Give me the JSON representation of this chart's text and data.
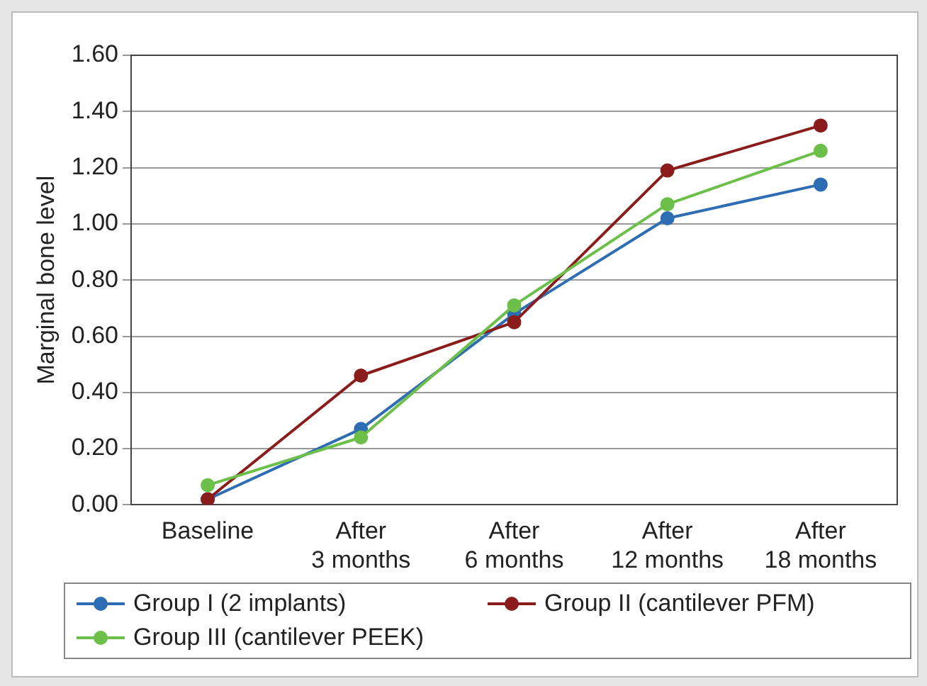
{
  "chart_data": {
    "type": "line",
    "ylabel": "Marginal bone level",
    "categories": [
      "Baseline",
      "After 3 months",
      "After 6 months",
      "After 12 months",
      "After 18 months"
    ],
    "series": [
      {
        "name": "Group I (2 implants)",
        "color": "#2e6db4",
        "values": [
          0.02,
          0.27,
          0.68,
          1.02,
          1.14
        ]
      },
      {
        "name": "Group II (cantilever PFM)",
        "color": "#8b1c1c",
        "values": [
          0.02,
          0.46,
          0.65,
          1.19,
          1.35
        ]
      },
      {
        "name": "Group III (cantilever PEEK)",
        "color": "#6cc04a",
        "values": [
          0.07,
          0.24,
          0.71,
          1.07,
          1.26
        ]
      }
    ],
    "ylim": [
      0,
      1.6
    ],
    "yticks": [
      {
        "value": 0,
        "label": "0.00"
      },
      {
        "value": 0.2,
        "label": "0.20"
      },
      {
        "value": 0.4,
        "label": "0.40"
      },
      {
        "value": 0.6,
        "label": "0.60"
      },
      {
        "value": 0.8,
        "label": "0.80"
      },
      {
        "value": 1,
        "label": "1.00"
      },
      {
        "value": 1.2,
        "label": "1.20"
      },
      {
        "value": 1.4,
        "label": "1.40"
      },
      {
        "value": 1.6,
        "label": "1.60"
      }
    ],
    "grid": "y",
    "legend": "bottom",
    "marker": "circle",
    "line_style": "solid"
  }
}
